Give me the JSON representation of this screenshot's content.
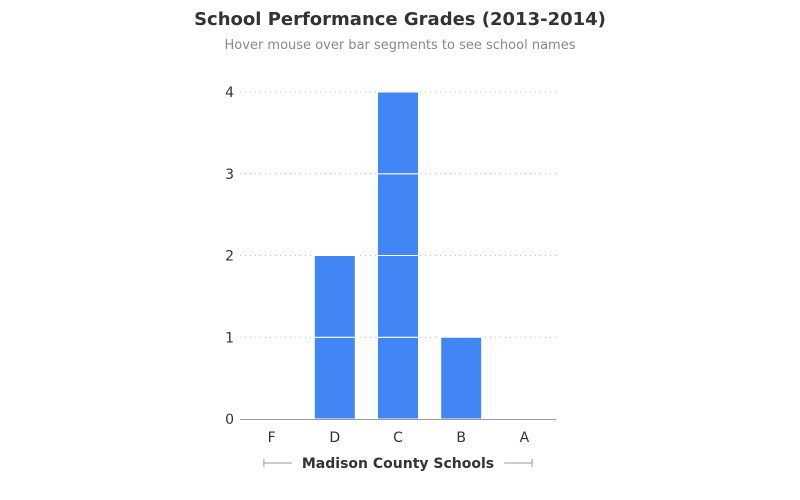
{
  "title": "School Performance Grades (2013-2014)",
  "subtitle": "Hover mouse over bar segments to see school names",
  "chart_data": {
    "type": "bar",
    "title": "School Performance Grades (2013-2014)",
    "subtitle": "Hover mouse over bar segments to see school names",
    "categories": [
      "F",
      "D",
      "C",
      "B",
      "A"
    ],
    "values": [
      0,
      2,
      4,
      1,
      0
    ],
    "xlabel": "Madison County Schools",
    "ylabel": "",
    "ylim": [
      0,
      4
    ],
    "yticks": [
      0,
      1,
      2,
      3,
      4
    ],
    "grid": true,
    "bar_segments": "one segment per school (unit height)",
    "colors": {
      "bar": "#4285f4",
      "segment_divider": "#ffffff",
      "grid": "#bbbbbb",
      "axis": "#999999"
    }
  }
}
